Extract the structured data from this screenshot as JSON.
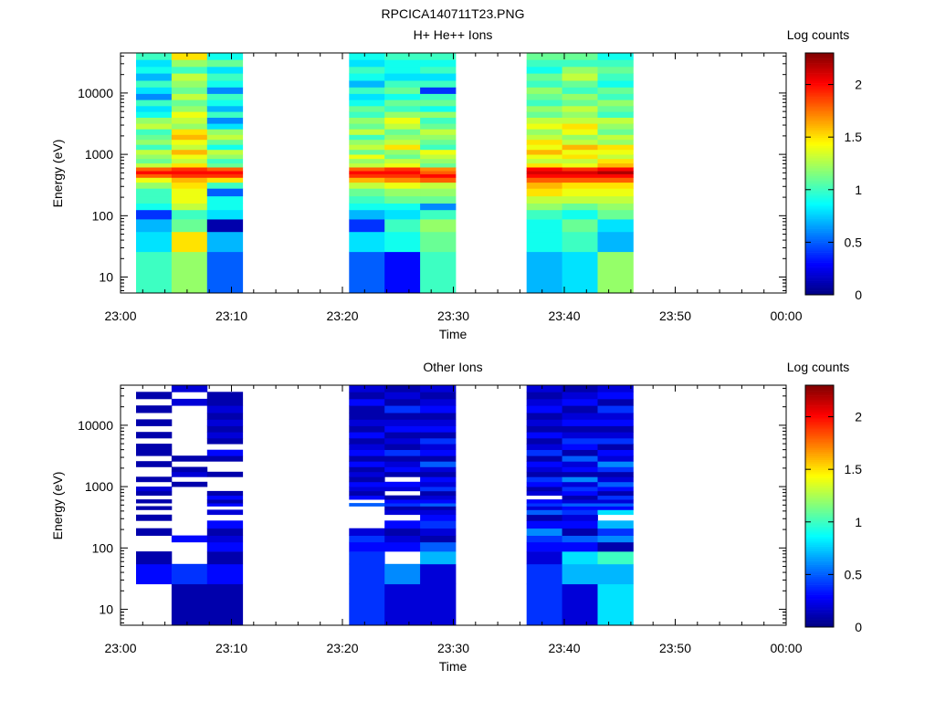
{
  "figure_title": "RPCICA140711T23.PNG",
  "colormap": [
    "#00007f",
    "#0000ff",
    "#007fff",
    "#00ffff",
    "#7fff7f",
    "#ffff00",
    "#ff7f00",
    "#ff0000",
    "#7f0000"
  ],
  "chart_data": [
    {
      "type": "heatmap",
      "title": "H+ He++ Ions",
      "xlabel": "Time",
      "ylabel": "Energy (eV)",
      "colorbar_label": "Log counts",
      "x_ticks": [
        "23:00",
        "23:10",
        "23:20",
        "23:30",
        "23:40",
        "23:50",
        "00:00"
      ],
      "y_ticks": [
        "10",
        "100",
        "1000",
        "10000"
      ],
      "y_scale": "log",
      "ylim": [
        5.5,
        45000
      ],
      "xlim_minutes": [
        0,
        60
      ],
      "colorbar_ticks": [
        "0",
        "0.5",
        "1",
        "1.5",
        "2"
      ],
      "zlim": [
        0,
        2.3
      ],
      "energy_edges": [
        5.5,
        26,
        55,
        88,
        125,
        160,
        210,
        280,
        350,
        420,
        480,
        540,
        620,
        720,
        850,
        1000,
        1200,
        1450,
        1750,
        2100,
        2600,
        3200,
        4000,
        5000,
        6200,
        7800,
        9800,
        12500,
        16000,
        21000,
        27000,
        35000,
        45000
      ],
      "time_edges_minutes": [
        1.4,
        4.6,
        7.8,
        11.0,
        20.6,
        23.8,
        27.0,
        30.2,
        36.6,
        39.8,
        43.0,
        46.2
      ],
      "block_starts": [
        0,
        4,
        8
      ],
      "columns": [
        [
          1.0,
          0.8,
          0.7,
          0.4,
          0.9,
          1.0,
          1.0,
          1.2,
          1.4,
          1.8,
          2.0,
          1.8,
          1.3,
          1.1,
          1.2,
          1.3,
          1.0,
          1.2,
          1.1,
          1.0,
          1.3,
          1.2,
          0.9,
          0.8,
          1.0,
          0.6,
          0.8,
          1.0,
          0.7,
          0.9,
          0.8,
          1.0
        ],
        [
          1.2,
          1.5,
          1.1,
          1.0,
          1.3,
          1.4,
          1.4,
          1.5,
          1.6,
          1.9,
          2.0,
          1.9,
          1.5,
          1.3,
          1.4,
          1.6,
          1.3,
          1.4,
          1.6,
          1.5,
          1.2,
          1.3,
          1.4,
          1.2,
          1.1,
          1.3,
          1.1,
          1.2,
          1.3,
          1.0,
          1.2,
          1.5
        ],
        [
          0.5,
          0.7,
          0.1,
          0.8,
          0.9,
          0.9,
          0.5,
          1.0,
          1.5,
          1.9,
          2.0,
          1.8,
          1.1,
          1.0,
          1.2,
          1.3,
          0.9,
          1.1,
          1.3,
          1.2,
          0.8,
          0.6,
          1.0,
          0.7,
          0.9,
          1.0,
          0.6,
          0.9,
          1.0,
          0.8,
          1.1,
          0.9
        ],
        [
          0.5,
          0.8,
          0.4,
          0.7,
          0.9,
          1.0,
          1.1,
          1.3,
          1.6,
          1.9,
          2.0,
          1.8,
          1.3,
          1.2,
          1.4,
          1.1,
          1.3,
          1.2,
          1.0,
          1.3,
          1.1,
          1.2,
          1.0,
          1.1,
          0.9,
          0.8,
          1.0,
          0.7,
          0.9,
          1.0,
          0.8,
          0.9
        ],
        [
          0.3,
          0.9,
          1.0,
          0.8,
          0.9,
          1.1,
          1.2,
          1.4,
          1.7,
          1.9,
          2.0,
          1.9,
          1.4,
          1.3,
          1.1,
          1.2,
          1.5,
          1.3,
          1.2,
          1.1,
          1.3,
          1.4,
          1.2,
          1.0,
          1.1,
          0.9,
          1.1,
          1.0,
          0.8,
          0.9,
          0.9,
          1.0
        ],
        [
          1.0,
          1.1,
          1.2,
          1.0,
          0.6,
          1.1,
          1.2,
          1.3,
          1.8,
          2.0,
          1.8,
          1.7,
          1.1,
          1.2,
          1.3,
          1.4,
          1.0,
          1.1,
          1.2,
          1.3,
          1.1,
          1.0,
          1.2,
          0.9,
          1.1,
          1.0,
          0.4,
          1.0,
          0.8,
          1.0,
          0.9,
          1.0
        ],
        [
          0.7,
          0.9,
          0.9,
          1.0,
          1.2,
          1.3,
          1.5,
          1.6,
          1.8,
          2.0,
          2.1,
          2.0,
          1.5,
          1.3,
          1.4,
          1.6,
          1.4,
          1.5,
          1.3,
          1.2,
          1.4,
          1.3,
          1.1,
          1.2,
          1.0,
          1.1,
          1.2,
          1.0,
          1.1,
          0.9,
          1.0,
          1.1
        ],
        [
          0.8,
          1.0,
          1.1,
          0.9,
          1.1,
          1.3,
          1.4,
          1.5,
          1.8,
          2.0,
          2.1,
          1.9,
          1.4,
          1.3,
          1.5,
          1.4,
          1.6,
          1.3,
          1.2,
          1.4,
          1.5,
          1.3,
          1.2,
          1.3,
          1.1,
          1.2,
          1.0,
          1.1,
          1.3,
          1.2,
          1.0,
          1.1
        ],
        [
          1.2,
          0.7,
          0.8,
          1.1,
          1.2,
          1.3,
          1.4,
          1.5,
          1.8,
          2.0,
          2.2,
          2.0,
          1.6,
          1.5,
          1.3,
          1.4,
          1.5,
          1.2,
          1.3,
          1.1,
          1.2,
          1.3,
          1.0,
          1.1,
          1.2,
          1.0,
          1.1,
          0.9,
          1.0,
          1.1,
          1.0,
          0.9
        ]
      ]
    },
    {
      "type": "heatmap",
      "title": "Other Ions",
      "xlabel": "Time",
      "ylabel": "Energy (eV)",
      "colorbar_label": "Log counts",
      "x_ticks": [
        "23:00",
        "23:10",
        "23:20",
        "23:30",
        "23:40",
        "23:50",
        "00:00"
      ],
      "y_ticks": [
        "10",
        "100",
        "1000",
        "10000"
      ],
      "y_scale": "log",
      "ylim": [
        5.5,
        45000
      ],
      "xlim_minutes": [
        0,
        60
      ],
      "colorbar_ticks": [
        "0",
        "0.5",
        "1",
        "1.5",
        "2"
      ],
      "zlim": [
        0,
        2.3
      ],
      "energy_edges": [
        5.5,
        26,
        55,
        88,
        125,
        160,
        210,
        280,
        350,
        420,
        480,
        540,
        620,
        720,
        850,
        1000,
        1200,
        1450,
        1750,
        2100,
        2600,
        3200,
        4000,
        5000,
        6200,
        7800,
        9800,
        12500,
        16000,
        21000,
        27000,
        35000,
        45000
      ],
      "time_edges_minutes": [
        1.4,
        4.6,
        7.8,
        11.0,
        20.6,
        23.8,
        27.0,
        30.2,
        36.6,
        39.8,
        43.0,
        46.2
      ],
      "block_starts": [
        0,
        4,
        8
      ],
      "columns": [
        [
          null,
          0.3,
          0.1,
          null,
          null,
          0.1,
          null,
          0.1,
          null,
          0.1,
          null,
          0.1,
          null,
          0.1,
          0.2,
          null,
          0.1,
          null,
          null,
          0.1,
          null,
          0.1,
          0.1,
          null,
          0.1,
          null,
          0.1,
          null,
          0.1,
          null,
          0.1,
          null
        ],
        [
          0.1,
          0.4,
          null,
          null,
          0.3,
          null,
          null,
          null,
          null,
          null,
          null,
          null,
          null,
          null,
          null,
          0.1,
          null,
          0.2,
          0.1,
          null,
          0.1,
          null,
          null,
          null,
          null,
          null,
          null,
          null,
          null,
          0.2,
          null,
          0.2
        ],
        [
          0.1,
          0.3,
          0.1,
          0.3,
          0.2,
          0.1,
          0.3,
          null,
          0.2,
          null,
          0.3,
          0.1,
          0.3,
          0.1,
          null,
          null,
          null,
          0.1,
          null,
          null,
          0.1,
          0.3,
          null,
          0.1,
          0.2,
          0.1,
          0.2,
          0.1,
          0.2,
          0.1,
          0.1,
          null
        ],
        [
          0.4,
          0.4,
          0.4,
          0.3,
          0.4,
          0.2,
          null,
          null,
          null,
          null,
          0.5,
          null,
          0.3,
          0.1,
          0.2,
          0.3,
          0.1,
          0.2,
          0.1,
          0.3,
          0.1,
          0.3,
          0.2,
          0.1,
          0.3,
          0.1,
          0.2,
          0.1,
          0.1,
          0.3,
          0.1,
          0.2
        ],
        [
          0.2,
          0.6,
          null,
          0.3,
          0.2,
          0.1,
          0.3,
          null,
          0.2,
          0.1,
          0.4,
          0.3,
          0.1,
          null,
          0.2,
          0.3,
          null,
          0.1,
          0.3,
          0.2,
          0.1,
          0.4,
          0.1,
          0.2,
          0.1,
          0.3,
          0.2,
          0.1,
          0.4,
          0.1,
          0.2,
          0.1
        ],
        [
          0.2,
          0.2,
          0.7,
          0.5,
          0.1,
          0.2,
          0.4,
          0.3,
          0.2,
          0.1,
          0.5,
          0.3,
          0.2,
          0.1,
          0.4,
          0.2,
          0.3,
          0.1,
          0.2,
          0.5,
          0.1,
          0.3,
          0.2,
          0.4,
          0.1,
          0.3,
          0.2,
          0.1,
          0.3,
          0.2,
          0.1,
          0.2
        ],
        [
          0.4,
          0.4,
          0.2,
          0.3,
          0.4,
          0.6,
          0.3,
          0.1,
          0.5,
          0.2,
          0.4,
          0.3,
          null,
          0.2,
          0.1,
          0.3,
          0.4,
          0.1,
          0.2,
          0.3,
          0.1,
          0.4,
          0.2,
          0.1,
          0.3,
          0.1,
          0.2,
          0.1,
          0.3,
          0.2,
          0.1,
          0.2
        ],
        [
          0.2,
          0.7,
          0.8,
          0.3,
          0.5,
          0.1,
          0.3,
          0.2,
          0.4,
          0.3,
          0.5,
          0.2,
          0.1,
          0.3,
          0.4,
          0.2,
          0.6,
          0.1,
          0.3,
          0.2,
          0.5,
          0.1,
          0.3,
          0.4,
          0.2,
          0.1,
          0.3,
          0.2,
          0.1,
          0.3,
          0.2,
          0.1
        ],
        [
          0.8,
          0.7,
          1.0,
          0.1,
          0.6,
          0.4,
          0.7,
          null,
          0.8,
          0.3,
          0.5,
          0.2,
          0.4,
          0.1,
          0.3,
          0.5,
          0.2,
          0.1,
          0.4,
          0.6,
          0.2,
          0.3,
          0.1,
          0.4,
          0.2,
          0.1,
          0.3,
          0.2,
          0.4,
          0.1,
          0.3,
          0.2
        ]
      ]
    }
  ]
}
